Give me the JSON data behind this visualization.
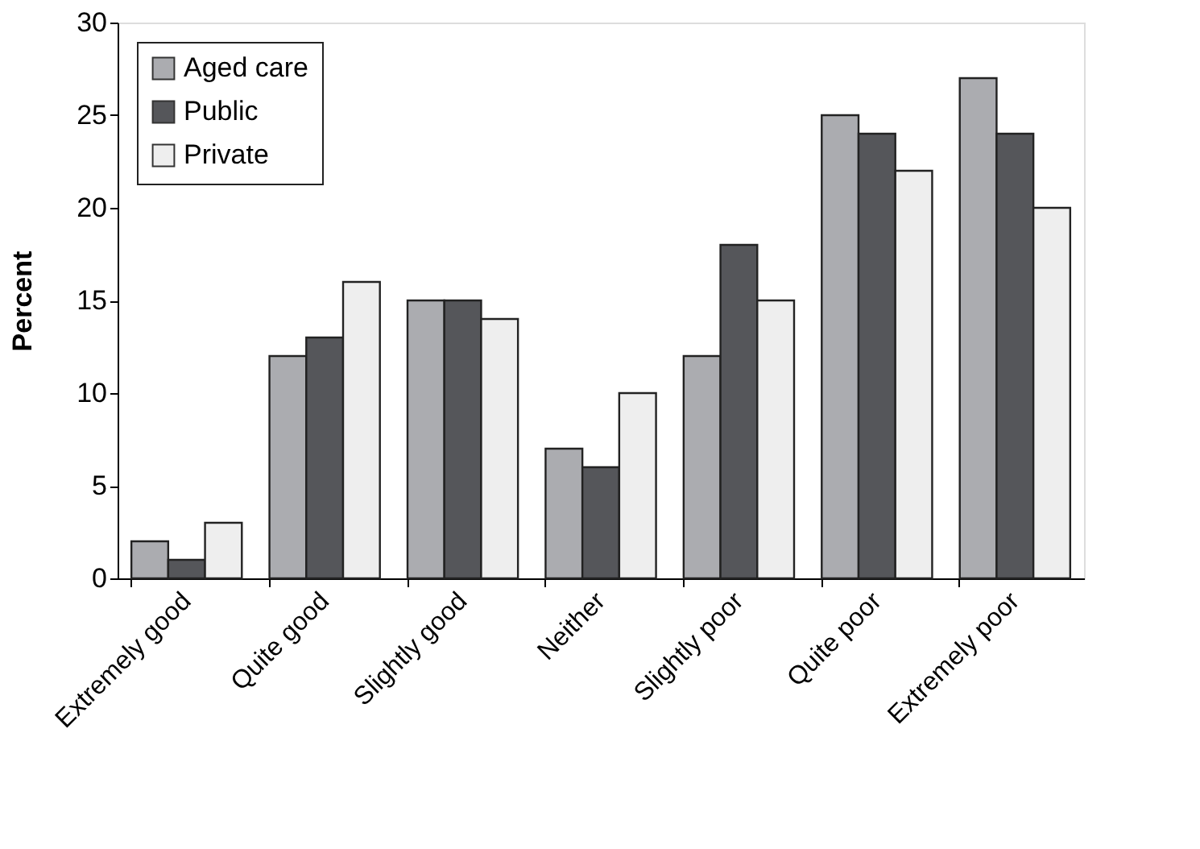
{
  "chart_data": {
    "type": "bar",
    "ylabel": "Percent",
    "categories": [
      "Extremely good",
      "Quite good",
      "Slightly good",
      "Neither",
      "Slightly poor",
      "Quite poor",
      "Extremely poor"
    ],
    "series": [
      {
        "name": "Aged care",
        "color": "#abacb0",
        "values": [
          2,
          12,
          15,
          7,
          12,
          25,
          27
        ]
      },
      {
        "name": "Public",
        "color": "#55565a",
        "values": [
          1,
          13,
          15,
          6,
          18,
          24,
          24
        ]
      },
      {
        "name": "Private",
        "color": "#eeeeee",
        "values": [
          3,
          16,
          14,
          10,
          15,
          22,
          20
        ]
      }
    ],
    "ylim": [
      0,
      30
    ],
    "yticks": [
      0,
      5,
      10,
      15,
      20,
      25,
      30
    ],
    "grid": false,
    "legend": "top left"
  }
}
